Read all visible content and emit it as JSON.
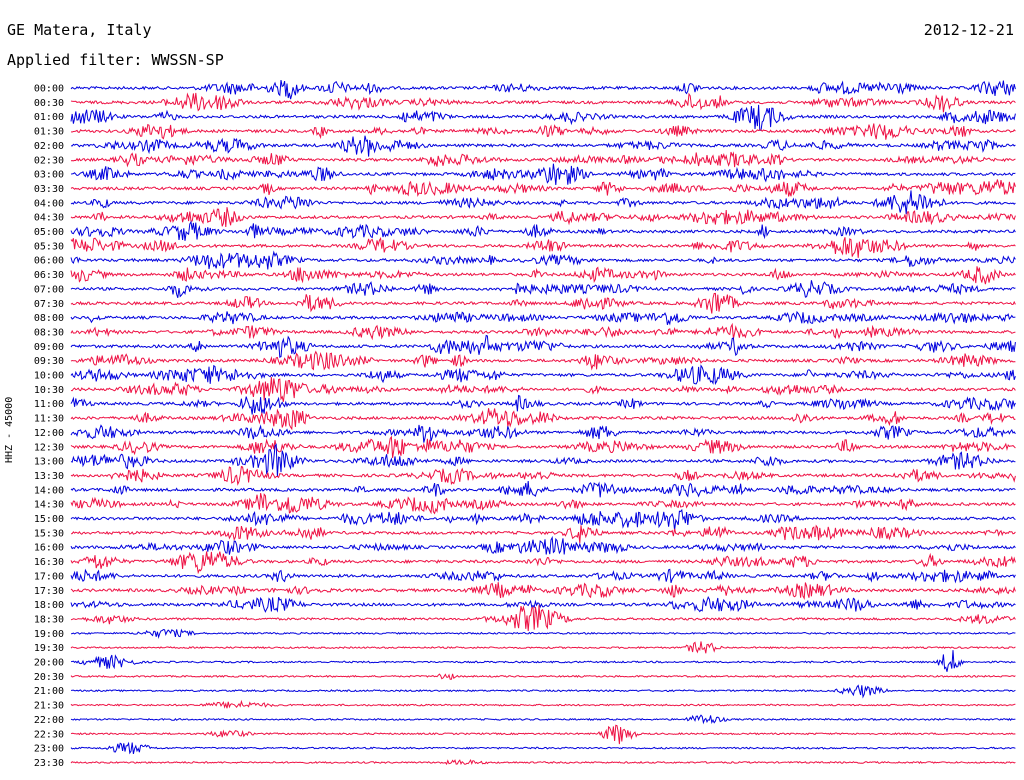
{
  "header": {
    "station": "GE Matera, Italy",
    "date": "2012-12-21",
    "filter": "Applied filter: WWSSN-SP"
  },
  "chart_data": {
    "type": "line",
    "title": "GE Matera, Italy",
    "ylabel": "HHZ - 45000",
    "series_colors": [
      "#0000dd",
      "#ee1144"
    ],
    "rows": [
      {
        "label": "00:00",
        "color": "#0000dd",
        "activity": "high"
      },
      {
        "label": "00:30",
        "color": "#ee1144",
        "activity": "high"
      },
      {
        "label": "01:00",
        "color": "#0000dd",
        "activity": "high"
      },
      {
        "label": "01:30",
        "color": "#ee1144",
        "activity": "high"
      },
      {
        "label": "02:00",
        "color": "#0000dd",
        "activity": "high"
      },
      {
        "label": "02:30",
        "color": "#ee1144",
        "activity": "high"
      },
      {
        "label": "03:00",
        "color": "#0000dd",
        "activity": "high"
      },
      {
        "label": "03:30",
        "color": "#ee1144",
        "activity": "high"
      },
      {
        "label": "04:00",
        "color": "#0000dd",
        "activity": "high"
      },
      {
        "label": "04:30",
        "color": "#ee1144",
        "activity": "high"
      },
      {
        "label": "05:00",
        "color": "#0000dd",
        "activity": "high"
      },
      {
        "label": "05:30",
        "color": "#ee1144",
        "activity": "high"
      },
      {
        "label": "06:00",
        "color": "#0000dd",
        "activity": "high"
      },
      {
        "label": "06:30",
        "color": "#ee1144",
        "activity": "high"
      },
      {
        "label": "07:00",
        "color": "#0000dd",
        "activity": "high"
      },
      {
        "label": "07:30",
        "color": "#ee1144",
        "activity": "high"
      },
      {
        "label": "08:00",
        "color": "#0000dd",
        "activity": "high"
      },
      {
        "label": "08:30",
        "color": "#ee1144",
        "activity": "high"
      },
      {
        "label": "09:00",
        "color": "#0000dd",
        "activity": "high"
      },
      {
        "label": "09:30",
        "color": "#ee1144",
        "activity": "high"
      },
      {
        "label": "10:00",
        "color": "#0000dd",
        "activity": "high"
      },
      {
        "label": "10:30",
        "color": "#ee1144",
        "activity": "high"
      },
      {
        "label": "11:00",
        "color": "#0000dd",
        "activity": "high"
      },
      {
        "label": "11:30",
        "color": "#ee1144",
        "activity": "high"
      },
      {
        "label": "12:00",
        "color": "#0000dd",
        "activity": "high"
      },
      {
        "label": "12:30",
        "color": "#ee1144",
        "activity": "high"
      },
      {
        "label": "13:00",
        "color": "#0000dd",
        "activity": "high"
      },
      {
        "label": "13:30",
        "color": "#ee1144",
        "activity": "high"
      },
      {
        "label": "14:00",
        "color": "#0000dd",
        "activity": "high"
      },
      {
        "label": "14:30",
        "color": "#ee1144",
        "activity": "high"
      },
      {
        "label": "15:00",
        "color": "#0000dd",
        "activity": "high"
      },
      {
        "label": "15:30",
        "color": "#ee1144",
        "activity": "high"
      },
      {
        "label": "16:00",
        "color": "#0000dd",
        "activity": "high"
      },
      {
        "label": "16:30",
        "color": "#ee1144",
        "activity": "high"
      },
      {
        "label": "17:00",
        "color": "#0000dd",
        "activity": "high"
      },
      {
        "label": "17:30",
        "color": "#ee1144",
        "activity": "high"
      },
      {
        "label": "18:00",
        "color": "#0000dd",
        "activity": "high"
      },
      {
        "label": "18:30",
        "color": "#ee1144",
        "activity": "medium"
      },
      {
        "label": "19:00",
        "color": "#0000dd",
        "activity": "low"
      },
      {
        "label": "19:30",
        "color": "#ee1144",
        "activity": "low"
      },
      {
        "label": "20:00",
        "color": "#0000dd",
        "activity": "low"
      },
      {
        "label": "20:30",
        "color": "#ee1144",
        "activity": "low"
      },
      {
        "label": "21:00",
        "color": "#0000dd",
        "activity": "low"
      },
      {
        "label": "21:30",
        "color": "#ee1144",
        "activity": "low"
      },
      {
        "label": "22:00",
        "color": "#0000dd",
        "activity": "low"
      },
      {
        "label": "22:30",
        "color": "#ee1144",
        "activity": "low"
      },
      {
        "label": "23:00",
        "color": "#0000dd",
        "activity": "low"
      },
      {
        "label": "23:30",
        "color": "#ee1144",
        "activity": "low"
      }
    ],
    "grid": false,
    "legend": "none"
  }
}
